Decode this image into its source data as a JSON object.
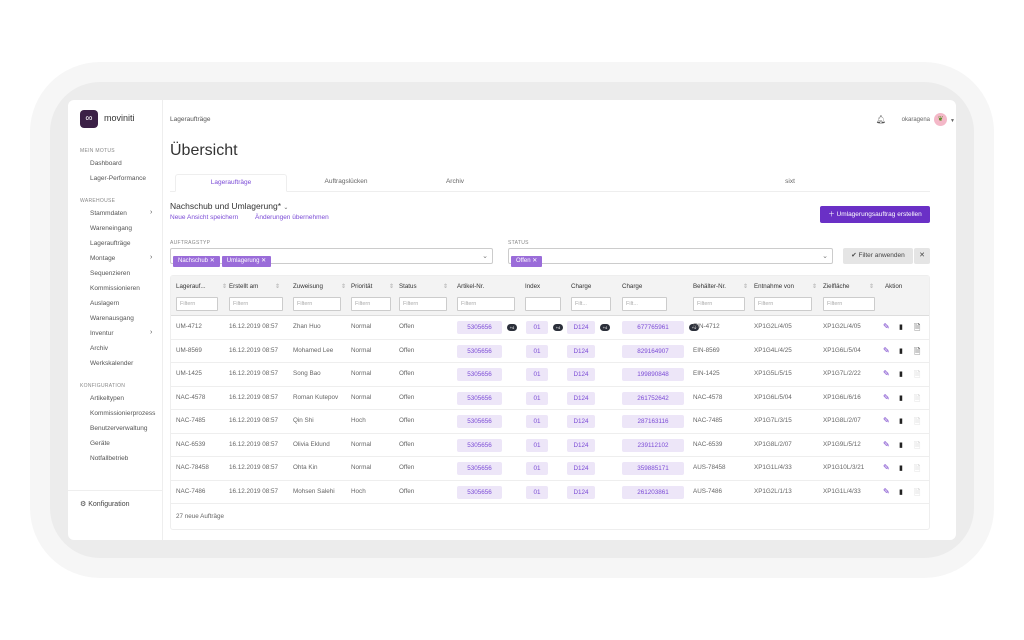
{
  "app": {
    "brand": "moviniti"
  },
  "sidebar": {
    "sections": [
      {
        "label": "MEIN MOTUS",
        "items": [
          {
            "label": "Dashboard"
          },
          {
            "label": "Lager-Performance"
          }
        ]
      },
      {
        "label": "WAREHOUSE",
        "items": [
          {
            "label": "Stammdaten",
            "sub": true
          },
          {
            "label": "Wareneingang"
          },
          {
            "label": "Lageraufträge"
          },
          {
            "label": "Montage",
            "sub": true
          },
          {
            "label": "Sequenzieren"
          },
          {
            "label": "Kommissionieren"
          },
          {
            "label": "Auslagern"
          },
          {
            "label": "Warenausgang"
          },
          {
            "label": "Inventur",
            "sub": true
          },
          {
            "label": "Archiv"
          },
          {
            "label": "Werkskalender"
          }
        ]
      },
      {
        "label": "KONFIGURATION",
        "items": [
          {
            "label": "Artikeltypen"
          },
          {
            "label": "Kommissionierprozess"
          },
          {
            "label": "Benutzerverwaltung"
          },
          {
            "label": "Geräte"
          },
          {
            "label": "Notfallbetrieb"
          }
        ]
      }
    ],
    "footer": "Konfiguration"
  },
  "header": {
    "breadcrumb": "Lageraufträge",
    "user": "okaragena",
    "title": "Übersicht"
  },
  "tabs": [
    {
      "label": "Lageraufträge",
      "active": true
    },
    {
      "label": "Auftragslücken"
    },
    {
      "label": "Archiv"
    },
    {
      "label": "sixt"
    }
  ],
  "view": {
    "name": "Nachschub und Umlagerung*",
    "save": "Neue Ansicht speichern",
    "apply": "Änderungen übernehmen",
    "create": "Umlagerungsauftrag erstellen"
  },
  "filters": {
    "type_label": "AUFTRAGSTYP",
    "type_chips": [
      "Nachschub",
      "Umlagerung"
    ],
    "status_label": "STATUS",
    "status_chips": [
      "Offen"
    ],
    "apply": "Filter anwenden"
  },
  "table": {
    "columns": [
      "Lagerauf...",
      "Erstellt am",
      "Zuweisung",
      "Priorität",
      "Status",
      "Artikel-Nr.",
      "Index",
      "Charge",
      "Charge",
      "Behälter-Nr.",
      "Entnahme von",
      "Zielfläche",
      "Aktion"
    ],
    "filter_placeholders": [
      "Filtern",
      "Filtern",
      "Filtern",
      "Filtern",
      "Filtern",
      "Filtern",
      "",
      "Filt...",
      "Filt...",
      "Filtern",
      "Filtern",
      "Filtern"
    ],
    "more_badge": "+4",
    "rows": [
      [
        "UM-4712",
        "16.12.2019 08:57",
        "Zhan Huo",
        "Normal",
        "Offen",
        "5305656",
        "01",
        "D124",
        "677765961",
        "EIN-4712",
        "XP1G2L/4/05",
        "XP1G2L/4/05"
      ],
      [
        "UM-8569",
        "16.12.2019 08:57",
        "Mohamed Lee",
        "Normal",
        "Offen",
        "5305656",
        "01",
        "D124",
        "829164907",
        "EIN-8569",
        "XP1G4L/4/25",
        "XP1G6L/5/04"
      ],
      [
        "UM-1425",
        "16.12.2019 08:57",
        "Song Bao",
        "Normal",
        "Offen",
        "5305656",
        "01",
        "D124",
        "199890848",
        "EIN-1425",
        "XP1G5L/5/15",
        "XP1G7L/2/22"
      ],
      [
        "NAC-4578",
        "16.12.2019 08:57",
        "Roman Kutepov",
        "Normal",
        "Offen",
        "5305656",
        "01",
        "D124",
        "261752642",
        "NAC-4578",
        "XP1G6L/5/04",
        "XP1G6L/6/16"
      ],
      [
        "NAC-7485",
        "16.12.2019 08:57",
        "Qin Shi",
        "Hoch",
        "Offen",
        "5305656",
        "01",
        "D124",
        "287163116",
        "NAC-7485",
        "XP1G7L/3/15",
        "XP1G8L/2/07"
      ],
      [
        "NAC-6539",
        "16.12.2019 08:57",
        "Olivia Eklund",
        "Normal",
        "Offen",
        "5305656",
        "01",
        "D124",
        "239112102",
        "NAC-6539",
        "XP1G8L/2/07",
        "XP1G9L/5/12"
      ],
      [
        "NAC-78458",
        "16.12.2019 08:57",
        "Ohta Kin",
        "Normal",
        "Offen",
        "5305656",
        "01",
        "D124",
        "359885171",
        "AUS-78458",
        "XP1G1L/4/33",
        "XP1G10L/3/21"
      ],
      [
        "NAC-7486",
        "16.12.2019 08:57",
        "Mohsen Salehi",
        "Hoch",
        "Offen",
        "5305656",
        "01",
        "D124",
        "261203861",
        "AUS-7486",
        "XP1G2L/1/13",
        "XP1G1L/4/33"
      ]
    ],
    "footer": "27 neue Aufträge"
  },
  "colors": {
    "accent": "#6a30c6",
    "pill_bg": "#ede6f8",
    "pill_text": "#7b4bd6"
  }
}
